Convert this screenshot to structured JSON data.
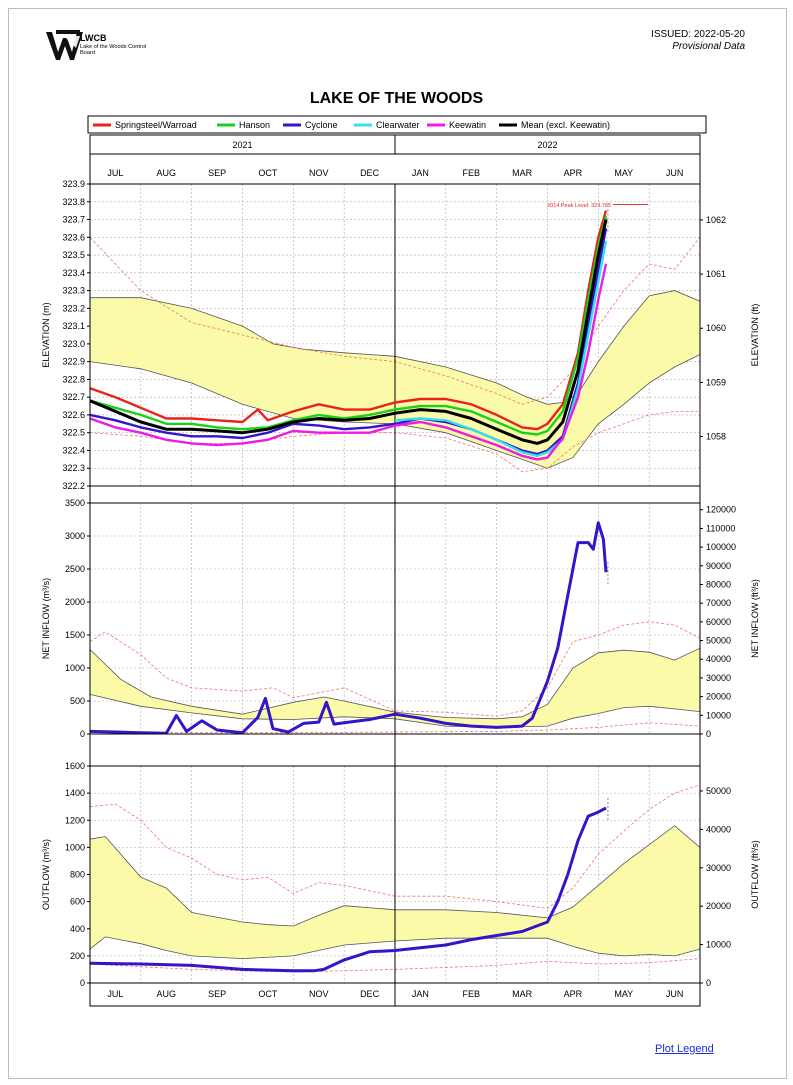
{
  "header": {
    "logo_name": "LWCB",
    "logo_sub": "Lake of the Woods Control Board",
    "issued": "ISSUED: 2022-05-20",
    "status": "Provisional Data"
  },
  "title": "LAKE OF THE WOODS",
  "link_label": "Plot Legend",
  "years": [
    "2021",
    "2022"
  ],
  "months": [
    "JUL",
    "AUG",
    "SEP",
    "OCT",
    "NOV",
    "DEC",
    "JAN",
    "FEB",
    "MAR",
    "APR",
    "MAY",
    "JUN"
  ],
  "legend": [
    {
      "label": "Springsteel/Warroad",
      "color": "#e8231b"
    },
    {
      "label": "Hanson",
      "color": "#19d119"
    },
    {
      "label": "Cyclone",
      "color": "#3514c9"
    },
    {
      "label": "Clearwater",
      "color": "#33e0ee"
    },
    {
      "label": "Keewatin",
      "color": "#f01ae8"
    },
    {
      "label": "Mean (excl. Keewatin)",
      "color": "#000000"
    }
  ],
  "annotation": "2014 Peak Level: 323.785",
  "colors": {
    "band_fill": "#fafaa9",
    "band_line": "#555555",
    "extreme_line": "#f0766e",
    "flow_line": "#3514c9"
  },
  "chart_data": [
    {
      "type": "line",
      "ylabel": "ELEVATION (m)",
      "y2label": "ELEVATION (ft)",
      "ylim": [
        322.2,
        323.9
      ],
      "yticks": [
        322.2,
        322.3,
        322.4,
        322.5,
        322.6,
        322.7,
        322.8,
        322.9,
        323.0,
        323.1,
        323.2,
        323.3,
        323.4,
        323.5,
        323.6,
        323.7,
        323.8,
        323.9
      ],
      "y2ticks": [
        1058,
        1059,
        1060,
        1061,
        1062
      ],
      "x_unit": "months since 2021-06-01",
      "normal_band_upper": {
        "x": [
          0,
          1,
          2,
          3,
          3.6,
          4.2,
          5,
          6,
          7,
          8,
          8.6,
          9,
          9.3,
          9.6,
          10,
          10.5,
          11,
          11.5,
          12
        ],
        "y": [
          323.26,
          323.26,
          323.2,
          323.1,
          323.0,
          322.97,
          322.95,
          322.93,
          322.87,
          322.78,
          322.7,
          322.66,
          322.67,
          322.72,
          322.9,
          323.1,
          323.27,
          323.3,
          323.24
        ]
      },
      "normal_band_lower": {
        "x": [
          0,
          1,
          2,
          3,
          4,
          5,
          6,
          7,
          8,
          8.6,
          9,
          9.5,
          10,
          10.5,
          11,
          11.5,
          12
        ],
        "y": [
          322.9,
          322.86,
          322.78,
          322.66,
          322.58,
          322.56,
          322.55,
          322.5,
          322.4,
          322.34,
          322.3,
          322.36,
          322.55,
          322.66,
          322.78,
          322.87,
          322.94
        ]
      },
      "extreme_upper": {
        "x": [
          0,
          1,
          2,
          3,
          4,
          5,
          6,
          7,
          8,
          8.5,
          9,
          9.5,
          10,
          10.5,
          11,
          11.5,
          12
        ],
        "y": [
          323.6,
          323.3,
          323.12,
          323.05,
          322.98,
          322.93,
          322.9,
          322.82,
          322.72,
          322.66,
          322.7,
          322.85,
          323.1,
          323.3,
          323.45,
          323.42,
          323.6
        ]
      },
      "extreme_lower": {
        "x": [
          0,
          1,
          2,
          3,
          4,
          5,
          6,
          7,
          8,
          8.5,
          9,
          9.5,
          10,
          10.5,
          11,
          11.5,
          12
        ],
        "y": [
          322.5,
          322.48,
          322.44,
          322.44,
          322.48,
          322.5,
          322.5,
          322.47,
          322.38,
          322.28,
          322.3,
          322.42,
          322.5,
          322.55,
          322.6,
          322.62,
          322.62
        ]
      },
      "series": [
        {
          "name": "Springsteel/Warroad",
          "color": "#e8231b",
          "x": [
            0,
            0.5,
            1,
            1.5,
            2,
            2.5,
            3,
            3.3,
            3.5,
            4,
            4.5,
            5,
            5.5,
            6,
            6.5,
            7,
            7.5,
            8,
            8.5,
            8.8,
            9,
            9.3,
            9.6,
            9.8,
            10,
            10.15
          ],
          "y": [
            322.75,
            322.7,
            322.64,
            322.58,
            322.58,
            322.57,
            322.56,
            322.63,
            322.57,
            322.62,
            322.66,
            322.63,
            322.63,
            322.67,
            322.69,
            322.69,
            322.66,
            322.6,
            322.53,
            322.52,
            322.55,
            322.66,
            322.95,
            323.3,
            323.6,
            323.75
          ]
        },
        {
          "name": "Hanson",
          "color": "#19d119",
          "x": [
            0,
            0.5,
            1,
            1.5,
            2,
            2.5,
            3,
            3.5,
            4,
            4.5,
            5,
            5.5,
            6,
            6.5,
            7,
            7.5,
            8,
            8.5,
            8.8,
            9,
            9.3,
            9.6,
            9.8,
            10,
            10.15
          ],
          "y": [
            322.68,
            322.64,
            322.6,
            322.55,
            322.55,
            322.53,
            322.52,
            322.53,
            322.57,
            322.6,
            322.58,
            322.6,
            322.63,
            322.65,
            322.65,
            322.62,
            322.56,
            322.5,
            322.49,
            322.51,
            322.62,
            322.92,
            323.25,
            323.55,
            323.72
          ]
        },
        {
          "name": "Cyclone",
          "color": "#3514c9",
          "x": [
            0,
            0.5,
            1,
            1.5,
            2,
            2.5,
            3,
            3.5,
            4,
            4.5,
            5,
            5.5,
            6,
            6.5,
            7,
            7.5,
            8,
            8.5,
            8.8,
            9,
            9.3,
            9.6,
            9.8,
            10,
            10.15
          ],
          "y": [
            322.6,
            322.57,
            322.53,
            322.5,
            322.48,
            322.48,
            322.47,
            322.5,
            322.55,
            322.54,
            322.52,
            322.53,
            322.55,
            322.58,
            322.56,
            322.52,
            322.46,
            322.4,
            322.38,
            322.4,
            322.48,
            322.78,
            323.1,
            323.42,
            323.65
          ]
        },
        {
          "name": "Clearwater",
          "color": "#33e0ee",
          "x": [
            6,
            6.5,
            7,
            7.5,
            8,
            8.5,
            8.8,
            9,
            9.3,
            9.6,
            9.8,
            10,
            10.15
          ],
          "y": [
            322.57,
            322.58,
            322.57,
            322.52,
            322.46,
            322.39,
            322.37,
            322.39,
            322.46,
            322.75,
            323.05,
            323.35,
            323.58
          ]
        },
        {
          "name": "Keewatin",
          "color": "#f01ae8",
          "x": [
            0,
            0.5,
            1,
            1.5,
            2,
            2.5,
            3,
            3.5,
            4,
            4.5,
            5,
            5.5,
            6,
            6.5,
            7,
            7.5,
            8,
            8.5,
            8.8,
            9,
            9.3,
            9.6,
            9.8,
            10,
            10.15
          ],
          "y": [
            322.58,
            322.53,
            322.5,
            322.46,
            322.44,
            322.43,
            322.44,
            322.46,
            322.51,
            322.5,
            322.5,
            322.5,
            322.54,
            322.56,
            322.53,
            322.48,
            322.43,
            322.37,
            322.35,
            322.36,
            322.47,
            322.7,
            322.95,
            323.25,
            323.45
          ]
        },
        {
          "name": "Mean (excl. Keewatin)",
          "color": "#000000",
          "x": [
            0,
            0.5,
            1,
            1.5,
            2,
            2.5,
            3,
            3.5,
            4,
            4.5,
            5,
            5.5,
            6,
            6.5,
            7,
            7.5,
            8,
            8.5,
            8.8,
            9,
            9.3,
            9.6,
            9.8,
            10,
            10.15
          ],
          "y": [
            322.68,
            322.62,
            322.56,
            322.52,
            322.52,
            322.51,
            322.5,
            322.52,
            322.56,
            322.58,
            322.57,
            322.58,
            322.61,
            322.63,
            322.62,
            322.58,
            322.52,
            322.46,
            322.44,
            322.46,
            322.56,
            322.85,
            323.18,
            323.5,
            323.7
          ]
        }
      ]
    },
    {
      "type": "line",
      "ylabel": "NET INFLOW (m³/s)",
      "y2label": "NET INFLOW (ft³/s)",
      "ylim": [
        0,
        3500
      ],
      "yticks": [
        0,
        500,
        1000,
        1500,
        2000,
        2500,
        3000,
        3500
      ],
      "y2ticks": [
        0,
        10000,
        20000,
        30000,
        40000,
        50000,
        60000,
        70000,
        80000,
        90000,
        100000,
        110000,
        120000
      ],
      "normal_band_upper": {
        "x": [
          0,
          0.6,
          1.2,
          2,
          3,
          4,
          4.6,
          5,
          6,
          7,
          8,
          8.5,
          9,
          9.5,
          10,
          10.5,
          11,
          11.5,
          12
        ],
        "y": [
          1280,
          830,
          560,
          420,
          300,
          480,
          560,
          500,
          330,
          250,
          230,
          260,
          450,
          1000,
          1230,
          1270,
          1240,
          1120,
          1300
        ]
      },
      "normal_band_lower": {
        "x": [
          0,
          1,
          2,
          3,
          4,
          5,
          6,
          7,
          8,
          9,
          9.5,
          10,
          10.5,
          11,
          11.5,
          12
        ],
        "y": [
          600,
          420,
          320,
          230,
          220,
          260,
          230,
          120,
          100,
          120,
          240,
          310,
          400,
          420,
          380,
          340
        ]
      },
      "extreme_upper": {
        "x": [
          0,
          0.3,
          1,
          1.5,
          2,
          3,
          3.6,
          4,
          5,
          6,
          7,
          8,
          8.5,
          9,
          9.5,
          10,
          10.5,
          11,
          11.5,
          12
        ],
        "y": [
          1400,
          1550,
          1200,
          850,
          700,
          650,
          700,
          550,
          700,
          350,
          330,
          270,
          350,
          700,
          1400,
          1500,
          1650,
          1700,
          1650,
          1450
        ]
      },
      "extreme_lower": {
        "x": [
          0,
          2,
          4,
          6,
          8,
          9,
          10,
          11,
          12
        ],
        "y": [
          30,
          20,
          20,
          30,
          40,
          60,
          100,
          170,
          120
        ]
      },
      "series": [
        {
          "name": "Net Inflow",
          "color": "#3514c9",
          "x": [
            0,
            0.5,
            1,
            1.5,
            1.7,
            1.9,
            2.2,
            2.5,
            3,
            3.3,
            3.45,
            3.6,
            3.9,
            4.2,
            4.5,
            4.65,
            4.8,
            5,
            5.5,
            6,
            6.5,
            7,
            7.5,
            8,
            8.5,
            8.7,
            9,
            9.2,
            9.4,
            9.6,
            9.8,
            9.9,
            10,
            10.1,
            10.15
          ],
          "y": [
            40,
            30,
            20,
            10,
            280,
            40,
            200,
            60,
            20,
            250,
            540,
            80,
            30,
            160,
            180,
            480,
            150,
            170,
            220,
            300,
            240,
            160,
            120,
            100,
            120,
            240,
            800,
            1300,
            2100,
            2900,
            2900,
            2800,
            3200,
            2950,
            2450
          ]
        }
      ]
    },
    {
      "type": "line",
      "ylabel": "OUTFLOW (m³/s)",
      "y2label": "OUTFLOW (ft³/s)",
      "ylim": [
        0,
        1600
      ],
      "yticks": [
        0,
        200,
        400,
        600,
        800,
        1000,
        1200,
        1400,
        1600
      ],
      "y2ticks": [
        0,
        10000,
        20000,
        30000,
        40000,
        50000
      ],
      "normal_band_upper": {
        "x": [
          0,
          0.3,
          1,
          1.5,
          2,
          3,
          3.5,
          4,
          4.5,
          5,
          6,
          7,
          8,
          9,
          9.5,
          10,
          10.5,
          11,
          11.5,
          12
        ],
        "y": [
          1060,
          1080,
          780,
          700,
          520,
          450,
          430,
          420,
          500,
          570,
          540,
          540,
          520,
          480,
          560,
          720,
          880,
          1020,
          1160,
          1000
        ]
      },
      "normal_band_lower": {
        "x": [
          0,
          0.3,
          1,
          1.5,
          2,
          3,
          4,
          5,
          6,
          7,
          8,
          9,
          9.5,
          10,
          10.5,
          11,
          11.5,
          12
        ],
        "y": [
          250,
          340,
          290,
          240,
          200,
          180,
          200,
          280,
          310,
          330,
          330,
          330,
          270,
          220,
          200,
          210,
          200,
          250
        ]
      },
      "extreme_upper": {
        "x": [
          0,
          0.5,
          1,
          1.5,
          2,
          2.5,
          3,
          3.5,
          4,
          4.5,
          5,
          6,
          7,
          8,
          9,
          9.5,
          10,
          10.5,
          11,
          11.5,
          12
        ],
        "y": [
          1300,
          1320,
          1200,
          1000,
          920,
          800,
          760,
          780,
          660,
          740,
          720,
          640,
          640,
          600,
          550,
          700,
          950,
          1120,
          1280,
          1400,
          1460
        ]
      },
      "extreme_lower": {
        "x": [
          0,
          2,
          4,
          6,
          8,
          9,
          10,
          11,
          12
        ],
        "y": [
          140,
          100,
          80,
          100,
          130,
          160,
          140,
          150,
          180
        ]
      },
      "series": [
        {
          "name": "Outflow",
          "color": "#3514c9",
          "x": [
            0,
            1,
            2,
            3,
            4,
            4.4,
            4.6,
            5,
            5.5,
            6,
            7,
            7.5,
            8,
            8.5,
            9,
            9.2,
            9.4,
            9.6,
            9.8,
            10,
            10.15
          ],
          "y": [
            145,
            140,
            130,
            100,
            90,
            90,
            100,
            170,
            230,
            240,
            280,
            320,
            350,
            380,
            450,
            600,
            800,
            1050,
            1230,
            1260,
            1290
          ]
        }
      ]
    }
  ]
}
